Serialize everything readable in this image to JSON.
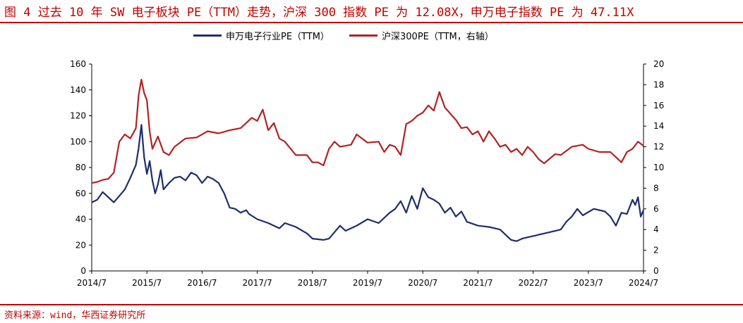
{
  "title": "图 4 过去 10 年 SW 电子板块 PE（TTM）走势，沪深 300 指数 PE 为 12.08X，申万电子指数 PE 为 47.11X",
  "source": "资料来源：wind，华西证券研究所",
  "colors": {
    "series1": "#1f2d6b",
    "series2": "#b22222",
    "accent": "#c00000"
  },
  "chart_data": {
    "type": "line",
    "title": "",
    "xlabel": "",
    "ylabel": "",
    "legend_position": "top",
    "grid": false,
    "x_tick_labels": [
      "2014/7",
      "2015/7",
      "2016/7",
      "2017/7",
      "2018/7",
      "2019/7",
      "2020/7",
      "2021/7",
      "2022/7",
      "2023/7",
      "2024/7"
    ],
    "y_left": {
      "lim": [
        0,
        160
      ],
      "ticks": [
        "0",
        "20",
        "40",
        "60",
        "80",
        "100",
        "120",
        "140",
        "160"
      ]
    },
    "y_right": {
      "lim": [
        0,
        20
      ],
      "ticks": [
        "0",
        "2",
        "4",
        "6",
        "8",
        "10",
        "12",
        "14",
        "16",
        "18",
        "20"
      ]
    },
    "series": [
      {
        "name": "申万电子行业PE（TTM）",
        "axis": "left",
        "x": [
          2014.5,
          2014.6,
          2014.7,
          2014.8,
          2014.9,
          2015.0,
          2015.1,
          2015.2,
          2015.3,
          2015.35,
          2015.4,
          2015.45,
          2015.5,
          2015.55,
          2015.6,
          2015.65,
          2015.7,
          2015.75,
          2015.8,
          2015.9,
          2016.0,
          2016.1,
          2016.2,
          2016.3,
          2016.4,
          2016.5,
          2016.6,
          2016.7,
          2016.8,
          2016.9,
          2017.0,
          2017.1,
          2017.2,
          2017.3,
          2017.35,
          2017.5,
          2017.7,
          2017.9,
          2018.0,
          2018.2,
          2018.4,
          2018.5,
          2018.7,
          2018.8,
          2018.9,
          2019.0,
          2019.1,
          2019.3,
          2019.5,
          2019.7,
          2019.9,
          2020.0,
          2020.1,
          2020.2,
          2020.3,
          2020.4,
          2020.5,
          2020.6,
          2020.7,
          2020.8,
          2020.9,
          2021.0,
          2021.1,
          2021.2,
          2021.3,
          2021.5,
          2021.7,
          2021.9,
          2022.0,
          2022.1,
          2022.2,
          2022.3,
          2022.4,
          2022.5,
          2022.6,
          2022.8,
          2023.0,
          2023.1,
          2023.2,
          2023.3,
          2023.4,
          2023.6,
          2023.8,
          2023.9,
          2024.0,
          2024.1,
          2024.2,
          2024.3,
          2024.35,
          2024.4,
          2024.45,
          2024.5
        ],
        "values": [
          53,
          55,
          61,
          57,
          53,
          58,
          63,
          72,
          82,
          95,
          113,
          88,
          75,
          85,
          70,
          60,
          67,
          78,
          63,
          68,
          72,
          73,
          70,
          76,
          74,
          68,
          73,
          71,
          68,
          60,
          49,
          48,
          45,
          47,
          44,
          40,
          37,
          33,
          37,
          34,
          29,
          25,
          24,
          25,
          30,
          35,
          31,
          35,
          40,
          37,
          45,
          48,
          54,
          45,
          58,
          48,
          64,
          57,
          55,
          52,
          45,
          49,
          42,
          46,
          38,
          35,
          34,
          32,
          28,
          24,
          23,
          25,
          26,
          27,
          28,
          30,
          32,
          38,
          42,
          48,
          43,
          48,
          46,
          42,
          35,
          45,
          44,
          55,
          51,
          57,
          42,
          47
        ]
      },
      {
        "name": "沪深300PE（TTM，右轴）",
        "axis": "right",
        "x": [
          2014.5,
          2014.6,
          2014.7,
          2014.8,
          2014.9,
          2015.0,
          2015.1,
          2015.2,
          2015.3,
          2015.35,
          2015.4,
          2015.45,
          2015.5,
          2015.55,
          2015.6,
          2015.7,
          2015.8,
          2015.9,
          2016.0,
          2016.2,
          2016.4,
          2016.6,
          2016.8,
          2017.0,
          2017.2,
          2017.4,
          2017.5,
          2017.6,
          2017.7,
          2017.8,
          2017.9,
          2018.0,
          2018.2,
          2018.4,
          2018.5,
          2018.6,
          2018.7,
          2018.8,
          2018.9,
          2019.0,
          2019.2,
          2019.3,
          2019.5,
          2019.7,
          2019.8,
          2019.9,
          2020.0,
          2020.1,
          2020.2,
          2020.3,
          2020.4,
          2020.5,
          2020.6,
          2020.7,
          2020.8,
          2020.9,
          2021.0,
          2021.1,
          2021.2,
          2021.3,
          2021.4,
          2021.5,
          2021.6,
          2021.7,
          2021.8,
          2021.9,
          2022.0,
          2022.1,
          2022.2,
          2022.3,
          2022.4,
          2022.5,
          2022.6,
          2022.7,
          2022.9,
          2023.0,
          2023.2,
          2023.4,
          2023.5,
          2023.7,
          2023.9,
          2024.0,
          2024.1,
          2024.2,
          2024.3,
          2024.4,
          2024.5
        ],
        "values": [
          8.5,
          8.6,
          8.8,
          8.9,
          9.5,
          12.5,
          13.2,
          12.8,
          13.8,
          17.0,
          18.5,
          17.2,
          16.5,
          13.5,
          11.8,
          13.0,
          11.5,
          11.2,
          12.0,
          12.8,
          12.9,
          13.5,
          13.3,
          13.6,
          13.8,
          14.8,
          14.5,
          15.6,
          13.6,
          14.3,
          12.8,
          12.5,
          11.2,
          11.2,
          10.5,
          10.5,
          10.2,
          11.8,
          12.5,
          12.0,
          12.2,
          13.2,
          12.4,
          12.5,
          11.5,
          12.2,
          12.0,
          11.2,
          14.2,
          14.5,
          15.0,
          15.3,
          16.0,
          15.5,
          17.3,
          15.8,
          15.2,
          14.6,
          13.8,
          13.9,
          13.2,
          13.5,
          12.5,
          13.5,
          12.8,
          12.0,
          12.2,
          11.5,
          11.8,
          11.2,
          12.0,
          11.5,
          10.8,
          10.4,
          11.3,
          11.2,
          12.0,
          12.2,
          11.8,
          11.5,
          11.5,
          11.0,
          10.5,
          11.5,
          11.8,
          12.5,
          12.08
        ]
      }
    ]
  }
}
